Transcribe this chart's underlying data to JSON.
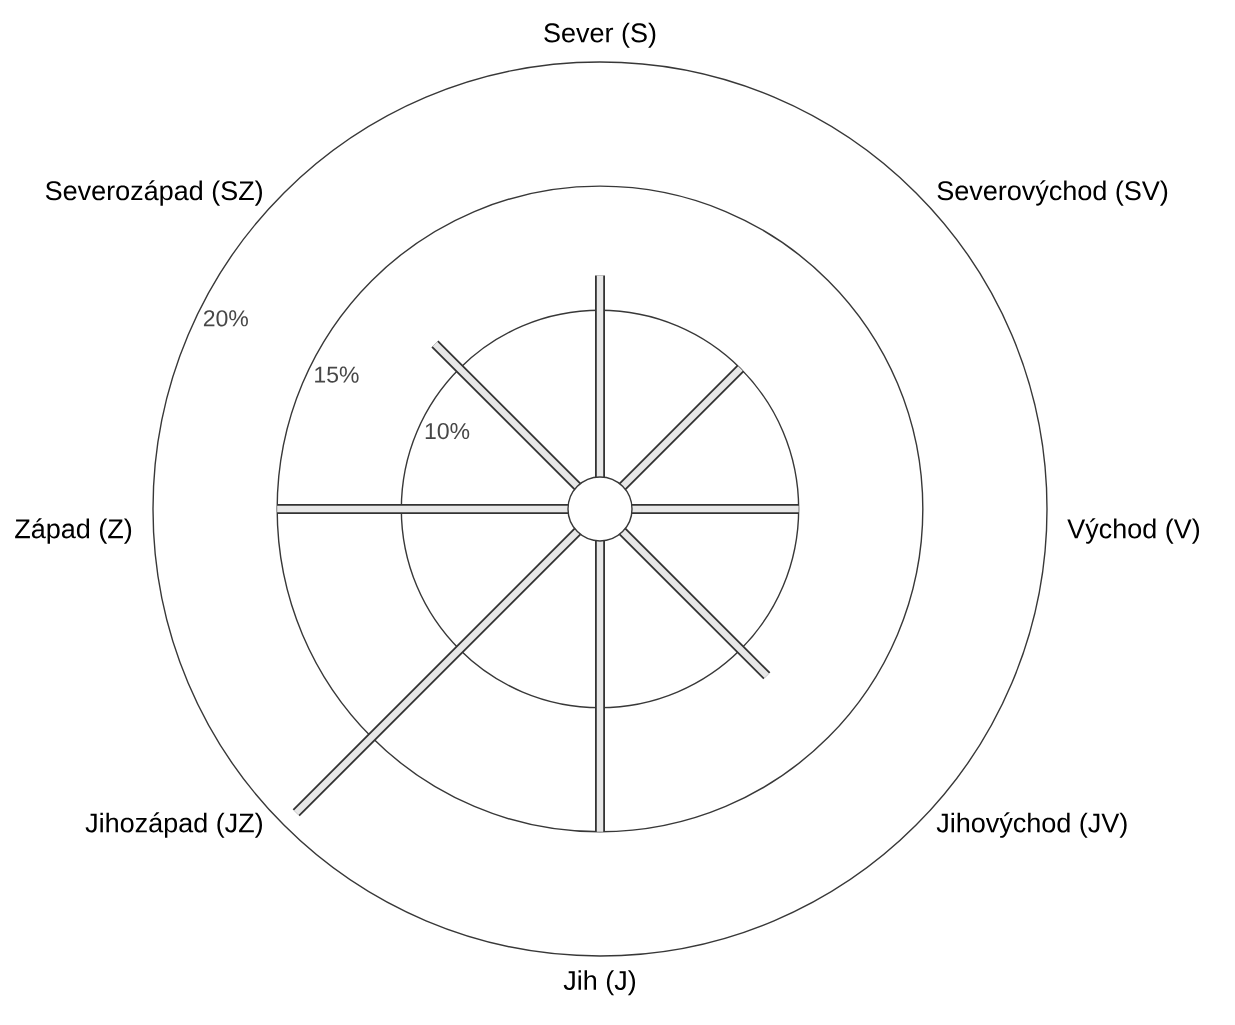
{
  "chart_data": {
    "type": "radar",
    "categories": [
      "Sever (S)",
      "Severovýchod (SV)",
      "Východ (V)",
      "Jihovýchod (JV)",
      "Jih (J)",
      "Jihozápad (JZ)",
      "Západ (Z)",
      "Severozápad (SZ)"
    ],
    "series": [
      {
        "type": "bar",
        "color": "#333333",
        "values": [
          11.4,
          10,
          10,
          11.5,
          15,
          19.3,
          15,
          11.4
        ]
      }
    ],
    "ylim": [
      2,
      20
    ],
    "yticks": [
      {
        "value": 10,
        "label": "10%"
      },
      {
        "value": 15,
        "label": "15%"
      },
      {
        "value": 20,
        "label": "20%"
      }
    ],
    "grid": true
  }
}
